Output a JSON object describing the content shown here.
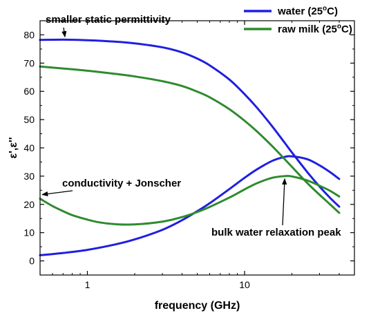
{
  "chart_data": {
    "type": "line",
    "xlabel": "frequency (GHz)",
    "ylabel": "ε',ε''",
    "xscale": "log",
    "xlim": [
      0.5,
      50
    ],
    "ylim": [
      -5,
      85
    ],
    "xticks": [
      {
        "value": 1,
        "label": "1"
      },
      {
        "value": 10,
        "label": "10"
      }
    ],
    "yticks": [
      0,
      10,
      20,
      30,
      40,
      50,
      60,
      70,
      80
    ],
    "legend_position": "top-right",
    "series": [
      {
        "name": "water (25",
        "name_sup": "o",
        "name_tail": "C)",
        "color": "#1f1fe0",
        "curves": [
          {
            "part": "real",
            "x": [
              0.5,
              0.7,
              1,
              1.5,
              2,
              3,
              4,
              5,
              6,
              8,
              10,
              12,
              15,
              18,
              20,
              25,
              30,
              35,
              40
            ],
            "y": [
              78.2,
              78.3,
              78.1,
              77.6,
              77.0,
              75.6,
              73.8,
              71.6,
              69.2,
              64.2,
              59.0,
              54.2,
              47.6,
              41.8,
              38.4,
              31.5,
              26.3,
              22.3,
              19.2
            ]
          },
          {
            "part": "imaginary",
            "x": [
              0.5,
              0.7,
              1,
              1.5,
              2,
              3,
              4,
              5,
              6,
              8,
              10,
              12,
              15,
              18,
              20,
              25,
              30,
              35,
              40
            ],
            "y": [
              2.0,
              2.8,
              3.9,
              5.8,
              7.6,
              11.0,
              14.4,
              17.6,
              20.4,
              25.4,
              29.4,
              32.4,
              35.4,
              36.8,
              37.0,
              36.0,
              33.8,
              31.4,
              29.0
            ]
          }
        ]
      },
      {
        "name": "raw milk (25",
        "name_sup": "o",
        "name_tail": "C)",
        "color": "#2e8b2e",
        "curves": [
          {
            "part": "real",
            "x": [
              0.5,
              0.7,
              1,
              1.5,
              2,
              3,
              4,
              5,
              6,
              8,
              10,
              12,
              15,
              18,
              20,
              25,
              30,
              35,
              40
            ],
            "y": [
              68.8,
              68.1,
              67.3,
              66.2,
              65.3,
              63.6,
              61.9,
              59.9,
              57.9,
              53.7,
              49.6,
              45.8,
              40.6,
              36.0,
              33.3,
              27.6,
              23.4,
              20.0,
              17.0
            ]
          },
          {
            "part": "imaginary",
            "x": [
              0.5,
              0.6,
              0.7,
              0.8,
              1,
              1.2,
              1.5,
              2,
              3,
              4,
              5,
              6,
              8,
              10,
              12,
              15,
              18,
              20,
              25,
              30,
              35,
              40
            ],
            "y": [
              22.0,
              19.4,
              17.6,
              16.2,
              14.6,
              13.6,
              13.0,
              12.9,
              13.9,
              15.5,
              17.3,
              19.1,
              22.4,
              25.3,
              27.5,
              29.4,
              30.0,
              29.9,
              28.5,
              26.6,
              24.8,
              22.8
            ]
          }
        ]
      }
    ],
    "annotations": [
      {
        "id": "static",
        "text": "smaller static permittivity",
        "point_x": 0.72,
        "point_y": 78.3
      },
      {
        "id": "conductivity",
        "text": "conductivity + Jonscher",
        "point_x": 0.5,
        "point_y": 22.0
      },
      {
        "id": "bulk",
        "text": "bulk water relaxation peak",
        "point_x": 18,
        "point_y": 30.5
      }
    ]
  }
}
